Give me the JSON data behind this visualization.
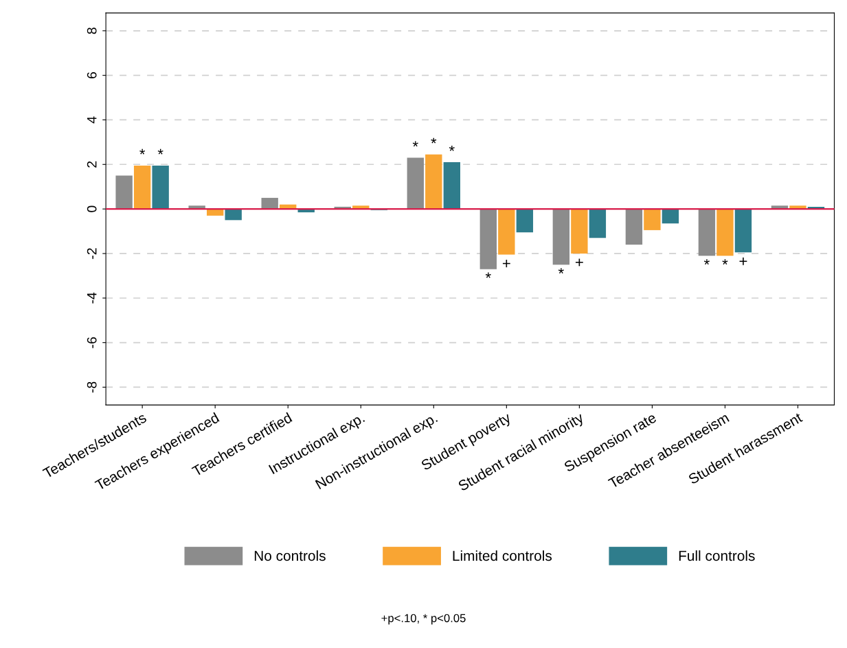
{
  "chart_data": {
    "type": "bar",
    "categories": [
      "Teachers/students",
      "Teachers experienced",
      "Teachers certified",
      "Instructional exp.",
      "Non-instructional exp.",
      "Student poverty",
      "Student racial minority",
      "Suspension rate",
      "Teacher absenteeism",
      "Student harassment"
    ],
    "series": [
      {
        "name": "No controls",
        "color": "#8c8c8c",
        "values": [
          1.5,
          0.15,
          0.5,
          0.1,
          2.3,
          -2.7,
          -2.5,
          -1.6,
          -2.1,
          0.15
        ],
        "value_labels": [
          null,
          null,
          null,
          null,
          "*",
          "*",
          "*",
          null,
          "*",
          null
        ]
      },
      {
        "name": "Limited controls",
        "color": "#f9a533",
        "values": [
          1.95,
          -0.3,
          0.2,
          0.15,
          2.45,
          -2.05,
          -2.0,
          -0.95,
          -2.1,
          0.15
        ],
        "value_labels": [
          "*",
          null,
          null,
          null,
          "*",
          "+",
          "+",
          null,
          "*",
          null
        ]
      },
      {
        "name": "Full controls",
        "color": "#2f7d8c",
        "values": [
          1.95,
          -0.5,
          -0.15,
          -0.05,
          2.1,
          -1.05,
          -1.3,
          -0.65,
          -1.95,
          0.1
        ],
        "value_labels": [
          "*",
          null,
          null,
          null,
          "*",
          null,
          null,
          null,
          "+",
          null
        ]
      }
    ],
    "ylim": [
      -8.8,
      8.8
    ],
    "yticks": [
      -8,
      -6,
      -4,
      -2,
      0,
      2,
      4,
      6,
      8
    ],
    "grid": "y",
    "legend": "bottom",
    "ref_lines": [
      {
        "axis": "y",
        "value": 0,
        "color": "#d81b4a",
        "line_style": "solid"
      }
    ],
    "annotations": [
      "+p<.10, * p<0.05"
    ]
  }
}
